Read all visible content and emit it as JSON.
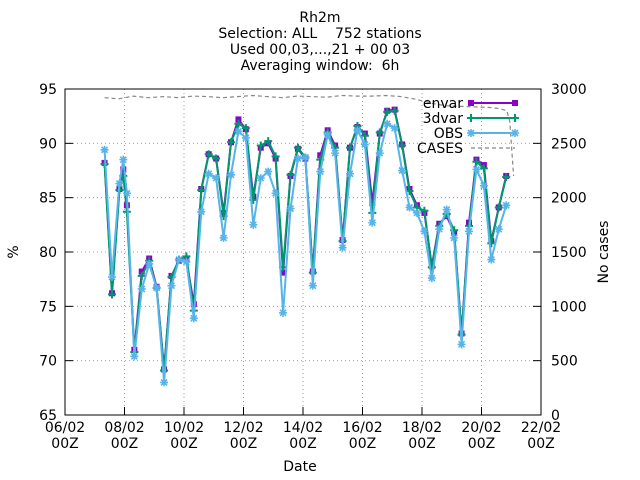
{
  "chart_data": {
    "type": "line",
    "title_lines": [
      "Rh2m",
      "Selection: ALL    752 stations",
      "Used 00,03,...,21 + 00 03",
      "Averaging window:  6h"
    ],
    "xlabel": "Date",
    "ylabel": "%",
    "y2label": "No cases",
    "xlim": [
      0,
      16
    ],
    "ylim": [
      65,
      95
    ],
    "y2lim": [
      0,
      3000
    ],
    "x_ticks": [
      {
        "x": 0,
        "line1": "06/02",
        "line2": "00Z"
      },
      {
        "x": 2,
        "line1": "08/02",
        "line2": "00Z"
      },
      {
        "x": 4,
        "line1": "10/02",
        "line2": "00Z"
      },
      {
        "x": 6,
        "line1": "12/02",
        "line2": "00Z"
      },
      {
        "x": 8,
        "line1": "14/02",
        "line2": "00Z"
      },
      {
        "x": 10,
        "line1": "16/02",
        "line2": "00Z"
      },
      {
        "x": 12,
        "line1": "18/02",
        "line2": "00Z"
      },
      {
        "x": 14,
        "line1": "20/02",
        "line2": "00Z"
      },
      {
        "x": 16,
        "line1": "22/02",
        "line2": "00Z"
      }
    ],
    "y_ticks": [
      65,
      70,
      75,
      80,
      85,
      90,
      95
    ],
    "y2_ticks": [
      0,
      500,
      1000,
      1500,
      2000,
      2500,
      3000
    ],
    "legend_position": "top-right",
    "x": [
      1.33,
      1.58,
      1.83,
      1.96,
      2.08,
      2.33,
      2.58,
      2.83,
      3.08,
      3.33,
      3.58,
      3.83,
      4.08,
      4.33,
      4.58,
      4.83,
      5.08,
      5.33,
      5.58,
      5.83,
      6.08,
      6.33,
      6.58,
      6.83,
      7.08,
      7.33,
      7.58,
      7.83,
      8.08,
      8.33,
      8.58,
      8.83,
      9.08,
      9.33,
      9.58,
      9.83,
      10.08,
      10.33,
      10.58,
      10.83,
      11.08,
      11.33,
      11.58,
      11.83,
      12.08,
      12.33,
      12.58,
      12.83,
      13.08,
      13.33,
      13.58,
      13.83,
      14.08,
      14.33,
      14.58,
      14.83,
      15.08
    ],
    "series": [
      {
        "name": "envar",
        "color": "#8b00c8",
        "marker": "square",
        "values": [
          88.2,
          76.2,
          85.8,
          87.6,
          84.3,
          71.0,
          78.2,
          79.4,
          76.8,
          69.2,
          77.8,
          79.2,
          79.3,
          75.2,
          85.8,
          89.0,
          88.6,
          83.6,
          90.1,
          92.2,
          91.3,
          85.1,
          89.6,
          90.0,
          88.6,
          78.1,
          87.0,
          89.5,
          88.6,
          78.2,
          88.9,
          91.2,
          89.8,
          81.1,
          89.6,
          91.5,
          90.9,
          84.5,
          90.9,
          93.0,
          93.1,
          89.9,
          85.8,
          84.3,
          83.6,
          78.7,
          82.6,
          83.3,
          81.8,
          72.5,
          82.7,
          88.5,
          88.0,
          81.0,
          84.1,
          87.0,
          null
        ]
      },
      {
        "name": "3dvar",
        "color": "#00966e",
        "marker": "cross",
        "values": [
          88.1,
          76.1,
          85.7,
          87.0,
          83.7,
          70.8,
          77.8,
          79.2,
          76.7,
          69.1,
          77.7,
          79.3,
          79.6,
          74.6,
          85.7,
          89.0,
          88.6,
          83.3,
          90.1,
          91.8,
          91.4,
          84.8,
          89.8,
          90.2,
          88.8,
          78.6,
          87.1,
          89.6,
          88.7,
          78.1,
          88.5,
          91.0,
          89.6,
          81.0,
          89.6,
          91.6,
          90.7,
          83.6,
          91.0,
          92.9,
          93.0,
          89.8,
          85.6,
          84.1,
          83.8,
          78.6,
          82.4,
          83.5,
          82.0,
          72.4,
          82.4,
          88.3,
          87.7,
          80.8,
          84.1,
          86.9,
          null
        ]
      },
      {
        "name": "OBS",
        "color": "#56b4e9",
        "marker": "star",
        "values": [
          89.4,
          77.7,
          86.3,
          88.5,
          85.4,
          70.4,
          76.6,
          78.9,
          76.7,
          68.0,
          76.9,
          79.3,
          79.1,
          73.9,
          83.7,
          87.2,
          86.8,
          81.3,
          87.1,
          91.1,
          90.5,
          82.5,
          86.8,
          87.4,
          85.4,
          74.4,
          84.0,
          88.6,
          88.7,
          76.9,
          87.4,
          90.8,
          89.1,
          80.4,
          87.2,
          91.2,
          89.9,
          82.7,
          89.1,
          91.8,
          91.4,
          87.5,
          84.1,
          83.6,
          81.9,
          77.6,
          82.1,
          83.9,
          81.3,
          71.5,
          81.9,
          87.6,
          86.1,
          79.3,
          82.1,
          84.3,
          null
        ]
      },
      {
        "name": "CASES",
        "color": "#888888",
        "style": "dashed",
        "axis": "y2",
        "x": [
          1.33,
          1.8,
          2.3,
          2.8,
          3.3,
          3.8,
          4.3,
          4.8,
          5.3,
          5.8,
          6.3,
          6.8,
          7.3,
          7.8,
          8.3,
          8.8,
          9.3,
          9.8,
          10.3,
          10.8,
          11.3,
          11.8,
          12.3,
          12.8,
          13.3,
          13.8,
          14.3,
          14.6,
          14.85,
          14.95,
          15.08
        ],
        "values": [
          2920,
          2910,
          2935,
          2920,
          2930,
          2920,
          2935,
          2930,
          2920,
          2930,
          2940,
          2930,
          2920,
          2935,
          2930,
          2925,
          2940,
          2935,
          2935,
          2940,
          2930,
          2905,
          2870,
          2845,
          2840,
          2835,
          2830,
          2820,
          2800,
          2700,
          2200
        ]
      }
    ]
  }
}
